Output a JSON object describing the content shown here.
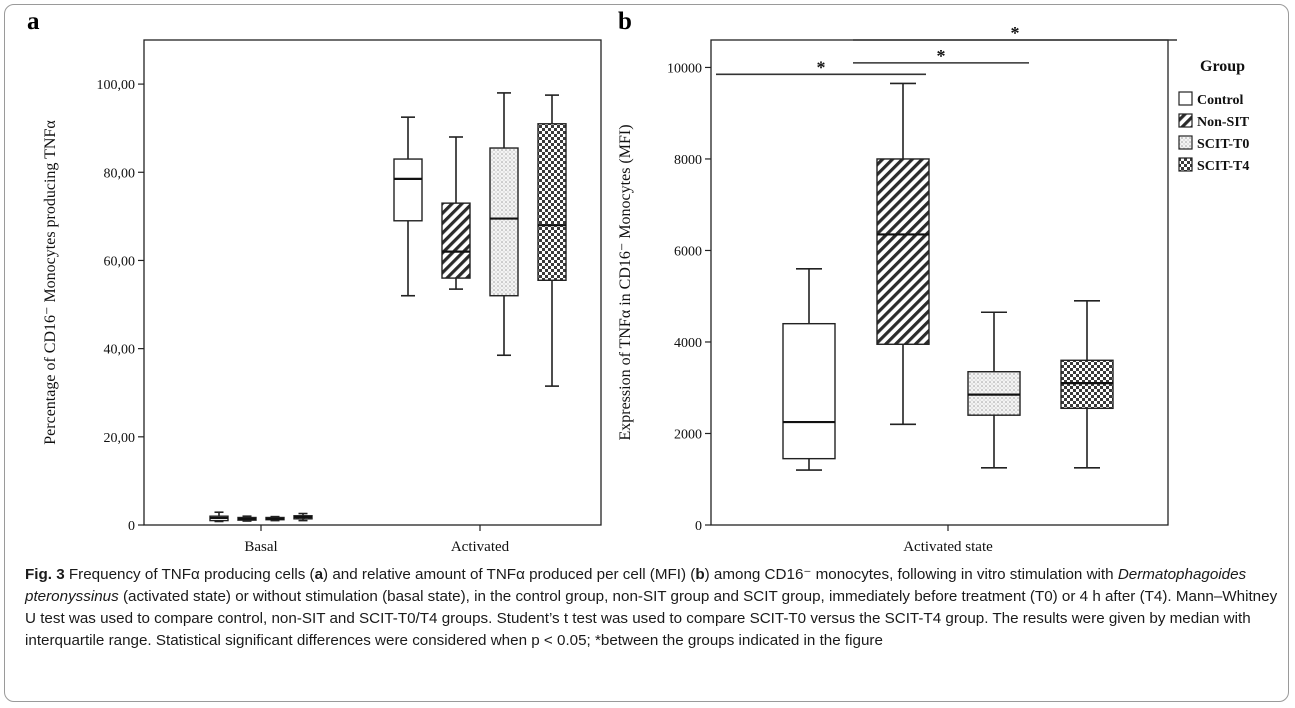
{
  "chart_data": [
    {
      "type": "box",
      "panel_label": "a",
      "ylabel": "Percentage of CD16⁻ Monocytes producing TNFα",
      "ylim": [
        0,
        110
      ],
      "yticks": [
        0,
        20,
        40,
        60,
        80,
        100
      ],
      "ytick_labels": [
        "0",
        "20,00",
        "40,00",
        "60,00",
        "80,00",
        "100,00"
      ],
      "categories": [
        "Basal",
        "Activated"
      ],
      "series": [
        {
          "name": "Control",
          "pattern": "blank",
          "boxes": [
            {
              "min": 0.8,
              "q1": 1.0,
              "median": 1.6,
              "q3": 2.0,
              "max": 2.9
            },
            {
              "min": 52.0,
              "q1": 69.0,
              "median": 78.5,
              "q3": 83.0,
              "max": 92.5
            }
          ]
        },
        {
          "name": "Non-SIT",
          "pattern": "diagonal",
          "boxes": [
            {
              "min": 0.9,
              "q1": 1.1,
              "median": 1.4,
              "q3": 1.7,
              "max": 2.0
            },
            {
              "min": 53.5,
              "q1": 56.0,
              "median": 62.0,
              "q3": 73.0,
              "max": 88.0
            }
          ]
        },
        {
          "name": "SCIT-T0",
          "pattern": "dots",
          "boxes": [
            {
              "min": 1.0,
              "q1": 1.2,
              "median": 1.4,
              "q3": 1.7,
              "max": 1.9
            },
            {
              "min": 38.5,
              "q1": 52.0,
              "median": 69.5,
              "q3": 85.5,
              "max": 98.0
            }
          ]
        },
        {
          "name": "SCIT-T4",
          "pattern": "checker",
          "boxes": [
            {
              "min": 1.0,
              "q1": 1.4,
              "median": 1.8,
              "q3": 2.1,
              "max": 2.6
            },
            {
              "min": 31.5,
              "q1": 55.5,
              "median": 68.0,
              "q3": 91.0,
              "max": 97.5
            }
          ]
        }
      ]
    },
    {
      "type": "box",
      "panel_label": "b",
      "ylabel": "Expression of TNFα in CD16⁻ Monocytes (MFI)",
      "ylim": [
        0,
        10600
      ],
      "yticks": [
        0,
        2000,
        4000,
        6000,
        8000,
        10000
      ],
      "ytick_labels": [
        "0",
        "2000",
        "4000",
        "6000",
        "8000",
        "10000"
      ],
      "categories": [
        "Activated state"
      ],
      "legend_title": "Group",
      "legend_position": "right",
      "series": [
        {
          "name": "Control",
          "pattern": "blank",
          "boxes": [
            {
              "min": 1200,
              "q1": 1450,
              "median": 2250,
              "q3": 4400,
              "max": 5600
            }
          ]
        },
        {
          "name": "Non-SIT",
          "pattern": "diagonal",
          "boxes": [
            {
              "min": 2200,
              "q1": 3950,
              "median": 6350,
              "q3": 8000,
              "max": 9650
            }
          ]
        },
        {
          "name": "SCIT-T0",
          "pattern": "dots",
          "boxes": [
            {
              "min": 1250,
              "q1": 2400,
              "median": 2850,
              "q3": 3350,
              "max": 4650
            }
          ]
        },
        {
          "name": "SCIT-T4",
          "pattern": "checker",
          "boxes": [
            {
              "min": 1250,
              "q1": 2550,
              "median": 3100,
              "q3": 3600,
              "max": 4900
            }
          ]
        }
      ],
      "significance": [
        {
          "from": "Control",
          "to": "Non-SIT",
          "y": 9850,
          "label": "*"
        },
        {
          "from": "Non-SIT",
          "to": "SCIT-T0",
          "y": 10100,
          "label": "*"
        },
        {
          "from": "Non-SIT",
          "to": "SCIT-T4",
          "y": 10600,
          "label": "*"
        }
      ]
    }
  ],
  "caption": {
    "fig_label": "Fig. 3",
    "t1": " Frequency of TNFα producing cells (",
    "a": "a",
    "t2": ") and relative amount of TNFα produced per cell (MFI) (",
    "b": "b",
    "t3": ") among CD16⁻ monocytes, following in vitro stimulation with ",
    "species": "Dermatophagoides pteronyssinus",
    "t4": " (activated state) or without stimulation (basal state), in the control group, non-SIT group and SCIT group, immediately before treatment (T0) or 4 h after (T4). Mann–Whitney U test was used to compare control, non-SIT and SCIT-T0/T4 groups. Student’s t test was used to compare SCIT-T0 versus the SCIT-T4 group. The results were given by median with interquartile range. Statistical significant differences were considered when p < 0.05; *between the groups indicated in the figure"
  }
}
